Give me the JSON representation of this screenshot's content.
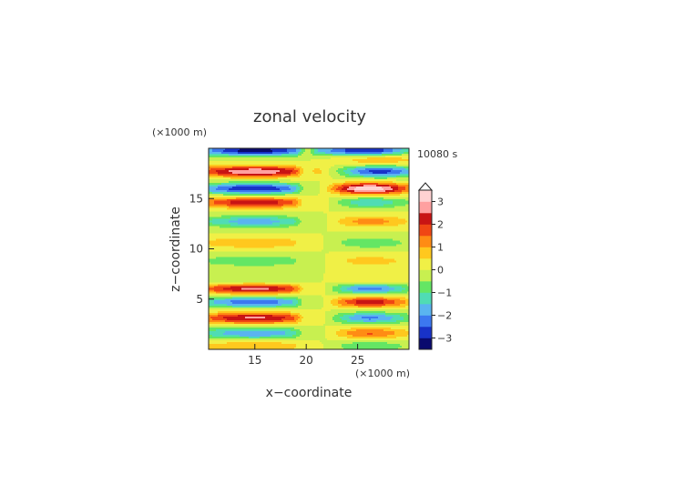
{
  "chart_data": {
    "type": "heatmap",
    "title": "zonal velocity",
    "time_label": "10080 s",
    "xlabel": "x−coordinate",
    "ylabel": "z−coordinate",
    "x_unit": "(×1000 m)",
    "y_unit": "(×1000 m)",
    "xlim": [
      10.5,
      30.0
    ],
    "ylim": [
      0.0,
      20.0
    ],
    "x_ticks": [
      15,
      20,
      25
    ],
    "y_ticks": [
      5,
      10,
      15
    ],
    "colorbar": {
      "range": [
        -3.5,
        3.5
      ],
      "step": 0.5,
      "tick_labels": [
        3,
        2,
        1,
        0,
        -1,
        -2,
        -3
      ]
    },
    "palette": [
      "#0a0a6e",
      "#1832c8",
      "#3c78f0",
      "#5ab4f0",
      "#50dcb4",
      "#64e664",
      "#c8f050",
      "#f0f046",
      "#ffc81e",
      "#ff8c14",
      "#f04614",
      "#c81414",
      "#ffa0a0",
      "#ffd2d2"
    ],
    "bands": [
      {
        "z": 19.8,
        "amp": -3.3,
        "cx": 15,
        "w": 6
      },
      {
        "z": 19.8,
        "amp": -3.0,
        "cx": 26,
        "w": 4
      },
      {
        "z": 18.9,
        "amp": 1.0,
        "cx": 27,
        "w": 4
      },
      {
        "z": 17.7,
        "amp": 3.0,
        "cx": 15,
        "w": 6
      },
      {
        "z": 17.7,
        "amp": -2.8,
        "cx": 27,
        "w": 4
      },
      {
        "z": 16.0,
        "amp": -3.0,
        "cx": 15,
        "w": 6
      },
      {
        "z": 16.0,
        "amp": 3.6,
        "cx": 26,
        "w": 4
      },
      {
        "z": 14.6,
        "amp": 2.4,
        "cx": 15,
        "w": 6
      },
      {
        "z": 14.6,
        "amp": -1.5,
        "cx": 26,
        "w": 4
      },
      {
        "z": 12.7,
        "amp": -1.8,
        "cx": 15,
        "w": 6
      },
      {
        "z": 12.7,
        "amp": 1.3,
        "cx": 26,
        "w": 4
      },
      {
        "z": 10.6,
        "amp": 1.0,
        "cx": 15,
        "w": 6
      },
      {
        "z": 10.6,
        "amp": -1.0,
        "cx": 26,
        "w": 4
      },
      {
        "z": 8.8,
        "amp": -1.0,
        "cx": 15,
        "w": 6
      },
      {
        "z": 8.8,
        "amp": 0.8,
        "cx": 26,
        "w": 4
      },
      {
        "z": 6.6,
        "amp": -0.9,
        "cx": 15,
        "w": 6
      },
      {
        "z": 6.6,
        "amp": 0.8,
        "cx": 26,
        "w": 4
      },
      {
        "z": 6.1,
        "amp": 3.0,
        "cx": 15,
        "w": 6
      },
      {
        "z": 6.1,
        "amp": -2.6,
        "cx": 26,
        "w": 4
      },
      {
        "z": 4.7,
        "amp": -2.4,
        "cx": 15,
        "w": 6
      },
      {
        "z": 4.7,
        "amp": 2.4,
        "cx": 26,
        "w": 4
      },
      {
        "z": 3.1,
        "amp": 2.6,
        "cx": 15,
        "w": 6
      },
      {
        "z": 3.1,
        "amp": -2.2,
        "cx": 26,
        "w": 4
      },
      {
        "z": 1.6,
        "amp": -2.0,
        "cx": 15,
        "w": 6
      },
      {
        "z": 1.6,
        "amp": 1.6,
        "cx": 26,
        "w": 4
      },
      {
        "z": 0.3,
        "amp": 1.0,
        "cx": 15,
        "w": 6
      },
      {
        "z": 0.3,
        "amp": -1.0,
        "cx": 26,
        "w": 4
      }
    ]
  }
}
